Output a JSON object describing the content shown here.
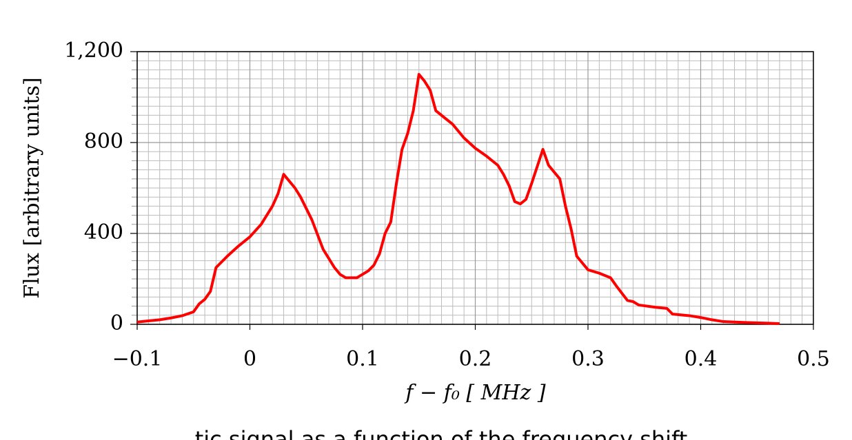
{
  "chart_data": {
    "type": "line",
    "xlabel": "f − f₀   [ MHz ]",
    "ylabel": "Flux [arbitrary units]",
    "caption": "tic signal as a function of the frequency shift",
    "x": [
      -0.1,
      -0.09,
      -0.08,
      -0.07,
      -0.06,
      -0.05,
      -0.045,
      -0.04,
      -0.035,
      -0.03,
      -0.02,
      -0.01,
      0,
      0.01,
      0.02,
      0.025,
      0.03,
      0.04,
      0.045,
      0.055,
      0.065,
      0.075,
      0.08,
      0.085,
      0.095,
      0.105,
      0.11,
      0.115,
      0.12,
      0.125,
      0.13,
      0.135,
      0.14,
      0.145,
      0.15,
      0.155,
      0.16,
      0.165,
      0.18,
      0.19,
      0.2,
      0.21,
      0.22,
      0.225,
      0.23,
      0.235,
      0.24,
      0.245,
      0.25,
      0.26,
      0.265,
      0.275,
      0.28,
      0.285,
      0.29,
      0.3,
      0.31,
      0.32,
      0.325,
      0.335,
      0.34,
      0.345,
      0.36,
      0.37,
      0.375,
      0.39,
      0.4,
      0.41,
      0.42,
      0.44,
      0.46,
      0.47
    ],
    "series": [
      {
        "name": "Flux",
        "color": "#ff0000",
        "values": [
          10,
          15,
          20,
          28,
          38,
          55,
          90,
          110,
          145,
          250,
          300,
          345,
          385,
          440,
          520,
          575,
          660,
          600,
          560,
          460,
          330,
          250,
          220,
          205,
          205,
          235,
          260,
          310,
          400,
          450,
          620,
          770,
          840,
          940,
          1100,
          1070,
          1030,
          940,
          880,
          820,
          775,
          740,
          700,
          660,
          610,
          540,
          530,
          550,
          620,
          770,
          700,
          640,
          520,
          420,
          300,
          240,
          225,
          205,
          170,
          105,
          100,
          85,
          75,
          70,
          45,
          38,
          30,
          20,
          12,
          8,
          5,
          3
        ]
      }
    ],
    "xlim": [
      -0.1,
      0.5
    ],
    "ylim": [
      0,
      1200
    ],
    "xticks": [
      {
        "value": -0.1,
        "label": "−0.1"
      },
      0,
      0.1,
      0.2,
      0.3,
      0.4,
      0.5
    ],
    "yticks": [
      0,
      400,
      800,
      {
        "value": 1200,
        "label": "1,200"
      }
    ],
    "grid": true
  }
}
